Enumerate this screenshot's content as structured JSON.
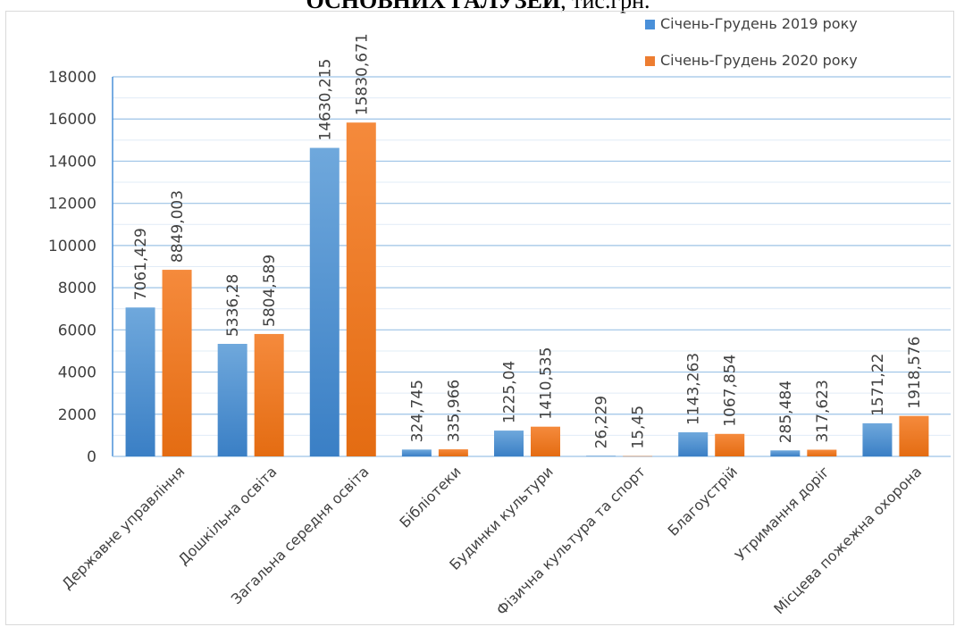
{
  "page": {
    "title_bold": "ОСНОВНИХ ГАЛУЗЕЙ",
    "title_rest": ", тис.грн."
  },
  "chart_data": {
    "type": "bar",
    "title": "ОСНОВНИХ ГАЛУЗЕЙ, тис.грн.",
    "xlabel": "",
    "ylabel": "",
    "categories": [
      "Державне управління",
      "Дошкільна освіта",
      "Загальна середня освіта",
      "Бібліотеки",
      "Будинки культури",
      "Фізична культура та спорт",
      "Благоустрій",
      "Утримання доріг",
      "Місцева пожежна охорона"
    ],
    "series": [
      {
        "name": "Січень-Грудень 2019 року",
        "color": "#4a90d9",
        "values": [
          7061.429,
          5336.28,
          14630.215,
          324.745,
          1225.04,
          26.229,
          1143.263,
          285.484,
          1571.22
        ],
        "labels": [
          "7061,429",
          "5336,28",
          "14630,215",
          "324,745",
          "1225,04",
          "26,229",
          "1143,263",
          "285,484",
          "1571,22"
        ]
      },
      {
        "name": "Січень-Грудень 2020 року",
        "color": "#ed7d31",
        "values": [
          8849.003,
          5804.589,
          15830.671,
          335.966,
          1410.535,
          15.45,
          1067.854,
          317.623,
          1918.576
        ],
        "labels": [
          "8849,003",
          "5804,589",
          "15830,671",
          "335,966",
          "1410,535",
          "15,45",
          "1067,854",
          "317,623",
          "1918,576"
        ]
      }
    ],
    "ylim": [
      0,
      18000
    ],
    "yticks": [
      0,
      2000,
      4000,
      6000,
      8000,
      10000,
      12000,
      14000,
      16000,
      18000
    ],
    "grid": true,
    "legend_position": "top-right"
  }
}
